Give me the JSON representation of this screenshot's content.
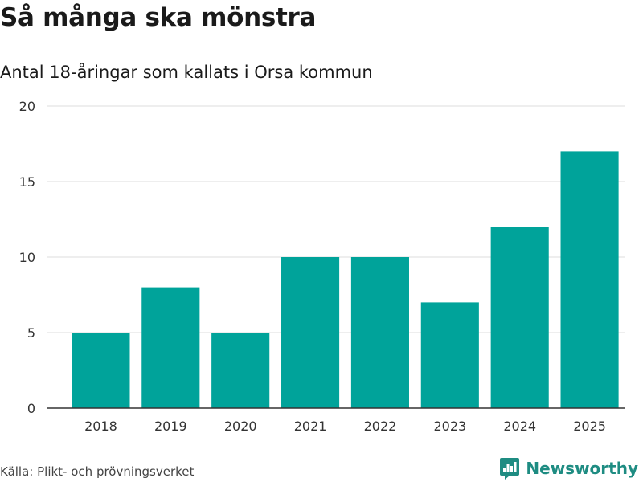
{
  "header": {
    "title": "Så många ska mönstra",
    "subtitle": "Antal 18-åringar som kallats i Orsa kommun"
  },
  "footer": {
    "source": "Källa: Plikt- och prövningsverket",
    "brand": "Newsworthy"
  },
  "colors": {
    "bar": "#00a39a",
    "brand": "#1e8c82",
    "grid": "#dddddd",
    "axis": "#333333"
  },
  "chart_data": {
    "type": "bar",
    "title": "Så många ska mönstra",
    "subtitle": "Antal 18-åringar som kallats i Orsa kommun",
    "categories": [
      "2018",
      "2019",
      "2020",
      "2021",
      "2022",
      "2023",
      "2024",
      "2025"
    ],
    "values": [
      5,
      8,
      5,
      10,
      10,
      7,
      12,
      17
    ],
    "xlabel": "",
    "ylabel": "",
    "ylim": [
      0,
      20
    ],
    "yticks": [
      "0",
      "5",
      "10",
      "15",
      "20"
    ],
    "grid": true,
    "legend": "none"
  }
}
